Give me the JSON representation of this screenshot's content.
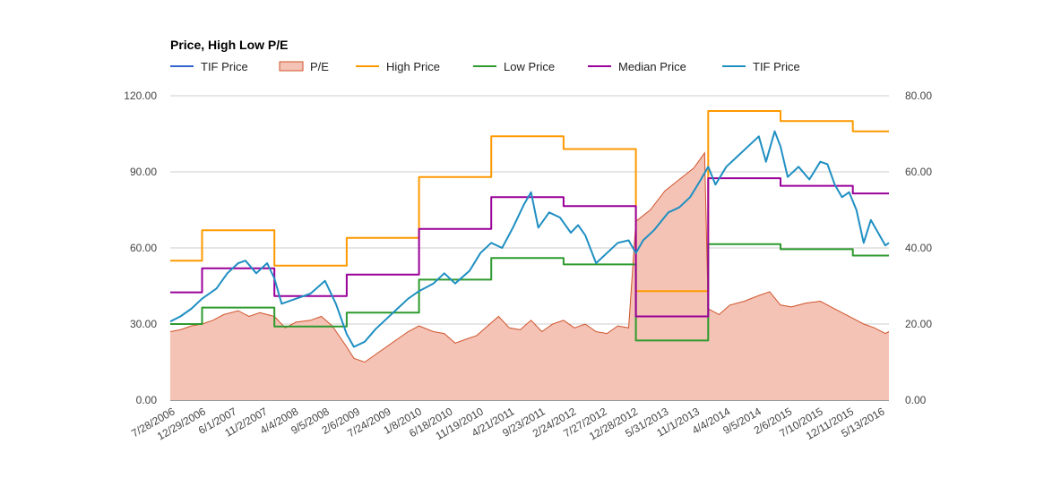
{
  "chart_data": {
    "type": "line",
    "title": "Price, High Low P/E",
    "legend": [
      {
        "name": "TIF Price",
        "color": "#3366cc",
        "kind": "line"
      },
      {
        "name": "P/E",
        "color": "#f4c3b5",
        "border": "#d0532b",
        "kind": "area"
      },
      {
        "name": "High Price",
        "color": "#ff9900",
        "kind": "line"
      },
      {
        "name": "Low Price",
        "color": "#2e9a2e",
        "kind": "line"
      },
      {
        "name": "Median Price",
        "color": "#990099",
        "kind": "line"
      },
      {
        "name": "TIF Price",
        "color": "#1f8fc2",
        "kind": "line"
      }
    ],
    "left_axis": {
      "ticks": [
        "0.00",
        "30.00",
        "60.00",
        "90.00",
        "120.00"
      ],
      "min": 0,
      "max": 120
    },
    "right_axis": {
      "ticks": [
        "0.00",
        "20.00",
        "40.00",
        "60.00",
        "80.00"
      ],
      "min": 0,
      "max": 80
    },
    "x_labels": [
      "7/28/2006",
      "12/29/2006",
      "6/1/2007",
      "11/2/2007",
      "4/4/2008",
      "9/5/2008",
      "2/6/2009",
      "7/24/2009",
      "1/8/2010",
      "6/18/2010",
      "11/19/2010",
      "4/21/2011",
      "9/23/2011",
      "2/24/2012",
      "7/27/2012",
      "12/28/2012",
      "5/31/2013",
      "11/1/2013",
      "4/4/2014",
      "9/5/2014",
      "2/6/2015",
      "7/10/2015",
      "12/11/2015",
      "5/13/2016"
    ],
    "x_range": [
      2006.56,
      2016.5
    ],
    "high_price": [
      [
        2006.56,
        55
      ],
      [
        2007.0,
        55
      ],
      [
        2007.0,
        67
      ],
      [
        2008.0,
        67
      ],
      [
        2008.0,
        53
      ],
      [
        2009.0,
        53
      ],
      [
        2009.0,
        64
      ],
      [
        2010.0,
        64
      ],
      [
        2010.0,
        88
      ],
      [
        2011.0,
        88
      ],
      [
        2011.0,
        104
      ],
      [
        2012.0,
        104
      ],
      [
        2012.0,
        99
      ],
      [
        2013.0,
        99
      ],
      [
        2013.0,
        43
      ],
      [
        2014.0,
        43
      ],
      [
        2014.0,
        114
      ],
      [
        2015.0,
        114
      ],
      [
        2015.0,
        110
      ],
      [
        2016.0,
        110
      ],
      [
        2016.0,
        106
      ],
      [
        2016.5,
        106
      ]
    ],
    "low_price": [
      [
        2006.56,
        30
      ],
      [
        2007.0,
        30
      ],
      [
        2007.0,
        36.5
      ],
      [
        2008.0,
        36.5
      ],
      [
        2008.0,
        29
      ],
      [
        2009.0,
        29
      ],
      [
        2009.0,
        34.5
      ],
      [
        2010.0,
        34.5
      ],
      [
        2010.0,
        47.5
      ],
      [
        2011.0,
        47.5
      ],
      [
        2011.0,
        56
      ],
      [
        2012.0,
        56
      ],
      [
        2012.0,
        53.5
      ],
      [
        2013.0,
        53.5
      ],
      [
        2013.0,
        23.5
      ],
      [
        2014.0,
        23.5
      ],
      [
        2014.0,
        61.5
      ],
      [
        2015.0,
        61.5
      ],
      [
        2015.0,
        59.5
      ],
      [
        2016.0,
        59.5
      ],
      [
        2016.0,
        57
      ],
      [
        2016.5,
        57
      ]
    ],
    "median_price": [
      [
        2006.56,
        42.5
      ],
      [
        2007.0,
        42.5
      ],
      [
        2007.0,
        52
      ],
      [
        2008.0,
        52
      ],
      [
        2008.0,
        41
      ],
      [
        2009.0,
        41
      ],
      [
        2009.0,
        49.5
      ],
      [
        2010.0,
        49.5
      ],
      [
        2010.0,
        67.5
      ],
      [
        2011.0,
        67.5
      ],
      [
        2011.0,
        80
      ],
      [
        2012.0,
        80
      ],
      [
        2012.0,
        76.5
      ],
      [
        2013.0,
        76.5
      ],
      [
        2013.0,
        33
      ],
      [
        2014.0,
        33
      ],
      [
        2014.0,
        87.5
      ],
      [
        2015.0,
        87.5
      ],
      [
        2015.0,
        84.5
      ],
      [
        2016.0,
        84.5
      ],
      [
        2016.0,
        81.5
      ],
      [
        2016.5,
        81.5
      ]
    ],
    "tif_price": [
      [
        2006.56,
        31
      ],
      [
        2006.7,
        33
      ],
      [
        2006.85,
        36
      ],
      [
        2007.0,
        40
      ],
      [
        2007.2,
        44
      ],
      [
        2007.35,
        50
      ],
      [
        2007.5,
        54
      ],
      [
        2007.6,
        55
      ],
      [
        2007.75,
        50
      ],
      [
        2007.9,
        54
      ],
      [
        2008.0,
        48
      ],
      [
        2008.1,
        38
      ],
      [
        2008.3,
        40
      ],
      [
        2008.5,
        42
      ],
      [
        2008.7,
        47
      ],
      [
        2008.85,
        38
      ],
      [
        2009.0,
        26
      ],
      [
        2009.1,
        21
      ],
      [
        2009.25,
        23
      ],
      [
        2009.4,
        28
      ],
      [
        2009.55,
        32
      ],
      [
        2009.7,
        36
      ],
      [
        2009.85,
        40
      ],
      [
        2010.0,
        43
      ],
      [
        2010.2,
        46
      ],
      [
        2010.35,
        50
      ],
      [
        2010.5,
        46
      ],
      [
        2010.7,
        51
      ],
      [
        2010.85,
        58
      ],
      [
        2011.0,
        62
      ],
      [
        2011.15,
        60
      ],
      [
        2011.3,
        68
      ],
      [
        2011.45,
        77
      ],
      [
        2011.55,
        82
      ],
      [
        2011.65,
        68
      ],
      [
        2011.8,
        74
      ],
      [
        2011.95,
        72
      ],
      [
        2012.1,
        66
      ],
      [
        2012.2,
        69
      ],
      [
        2012.3,
        65
      ],
      [
        2012.45,
        54
      ],
      [
        2012.6,
        58
      ],
      [
        2012.75,
        62
      ],
      [
        2012.9,
        63
      ],
      [
        2013.0,
        58
      ],
      [
        2013.1,
        63
      ],
      [
        2013.25,
        67
      ],
      [
        2013.45,
        74
      ],
      [
        2013.6,
        76
      ],
      [
        2013.75,
        80
      ],
      [
        2013.9,
        87
      ],
      [
        2014.0,
        92
      ],
      [
        2014.1,
        85
      ],
      [
        2014.25,
        92
      ],
      [
        2014.4,
        96
      ],
      [
        2014.55,
        100
      ],
      [
        2014.7,
        104
      ],
      [
        2014.8,
        94
      ],
      [
        2014.92,
        106
      ],
      [
        2015.0,
        100
      ],
      [
        2015.1,
        88
      ],
      [
        2015.25,
        92
      ],
      [
        2015.4,
        87
      ],
      [
        2015.55,
        94
      ],
      [
        2015.65,
        93
      ],
      [
        2015.75,
        85
      ],
      [
        2015.85,
        80
      ],
      [
        2015.95,
        82
      ],
      [
        2016.05,
        75
      ],
      [
        2016.15,
        62
      ],
      [
        2016.25,
        71
      ],
      [
        2016.35,
        66
      ],
      [
        2016.45,
        61
      ],
      [
        2016.5,
        62
      ]
    ],
    "pe_ratio": [
      [
        2006.56,
        18
      ],
      [
        2006.7,
        18.5
      ],
      [
        2006.85,
        19.5
      ],
      [
        2007.0,
        20
      ],
      [
        2007.15,
        21
      ],
      [
        2007.3,
        22.5
      ],
      [
        2007.5,
        23.5
      ],
      [
        2007.65,
        22
      ],
      [
        2007.8,
        23
      ],
      [
        2008.0,
        22
      ],
      [
        2008.15,
        19
      ],
      [
        2008.3,
        20.5
      ],
      [
        2008.5,
        21
      ],
      [
        2008.65,
        22
      ],
      [
        2008.8,
        19.5
      ],
      [
        2009.0,
        14
      ],
      [
        2009.1,
        11
      ],
      [
        2009.25,
        10
      ],
      [
        2009.4,
        12
      ],
      [
        2009.55,
        14
      ],
      [
        2009.7,
        16
      ],
      [
        2009.85,
        18
      ],
      [
        2010.0,
        19.5
      ],
      [
        2010.2,
        18
      ],
      [
        2010.35,
        17.5
      ],
      [
        2010.5,
        15
      ],
      [
        2010.65,
        16
      ],
      [
        2010.8,
        17
      ],
      [
        2010.95,
        19.5
      ],
      [
        2011.1,
        22
      ],
      [
        2011.25,
        19
      ],
      [
        2011.4,
        18.5
      ],
      [
        2011.55,
        21
      ],
      [
        2011.7,
        18
      ],
      [
        2011.85,
        20
      ],
      [
        2012.0,
        21
      ],
      [
        2012.15,
        19
      ],
      [
        2012.3,
        20
      ],
      [
        2012.45,
        18
      ],
      [
        2012.6,
        17.5
      ],
      [
        2012.75,
        19.5
      ],
      [
        2012.9,
        19
      ],
      [
        2013.0,
        47
      ],
      [
        2013.2,
        50
      ],
      [
        2013.4,
        55
      ],
      [
        2013.6,
        58
      ],
      [
        2013.8,
        61
      ],
      [
        2013.95,
        65
      ],
      [
        2014.0,
        24
      ],
      [
        2014.15,
        22.5
      ],
      [
        2014.3,
        25
      ],
      [
        2014.5,
        26
      ],
      [
        2014.7,
        27.5
      ],
      [
        2014.85,
        28.5
      ],
      [
        2015.0,
        25
      ],
      [
        2015.15,
        24.5
      ],
      [
        2015.35,
        25.5
      ],
      [
        2015.55,
        26
      ],
      [
        2015.7,
        24.5
      ],
      [
        2015.85,
        23
      ],
      [
        2016.0,
        21.5
      ],
      [
        2016.15,
        20
      ],
      [
        2016.3,
        19
      ],
      [
        2016.45,
        17.5
      ],
      [
        2016.5,
        18
      ]
    ]
  }
}
